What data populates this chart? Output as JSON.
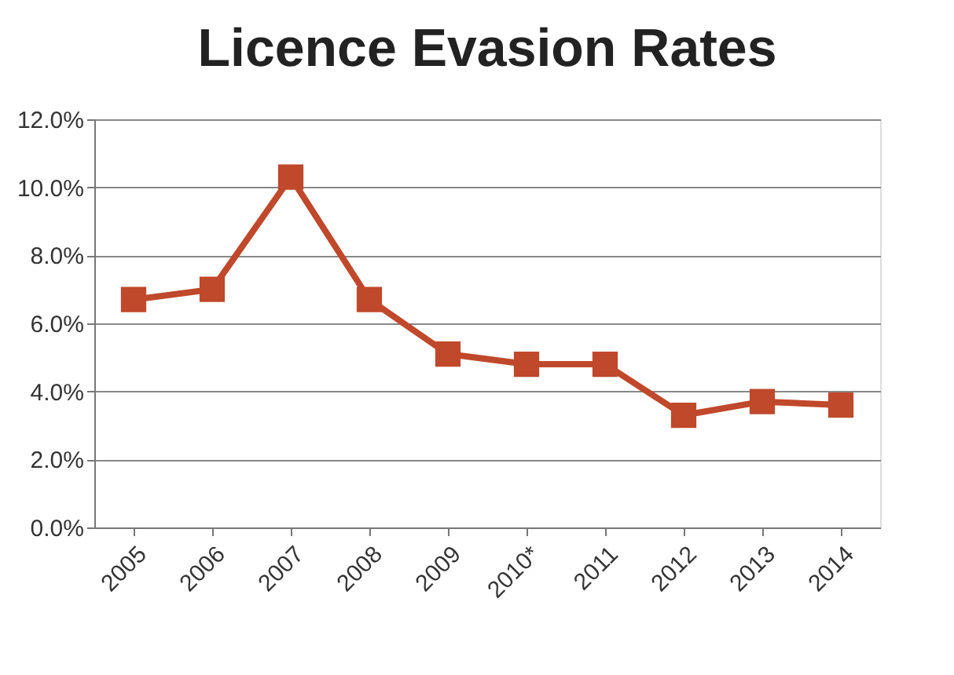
{
  "chart_data": {
    "type": "line",
    "title": "Licence Evasion Rates",
    "categories": [
      "2005",
      "2006",
      "2007",
      "2008",
      "2009",
      "2010*",
      "2011",
      "2012",
      "2013",
      "2014"
    ],
    "series": [
      {
        "color": "#c0482b",
        "values": [
          6.7,
          7.0,
          10.3,
          6.7,
          5.1,
          4.8,
          4.8,
          3.3,
          3.7,
          3.6
        ]
      }
    ],
    "ylim": [
      0,
      12
    ],
    "yticks": [
      {
        "value": 0,
        "label": "0.0%"
      },
      {
        "value": 2,
        "label": "2.0%"
      },
      {
        "value": 4,
        "label": "4.0%"
      },
      {
        "value": 6,
        "label": "6.0%"
      },
      {
        "value": 8,
        "label": "8.0%"
      },
      {
        "value": 10,
        "label": "10.0%"
      },
      {
        "value": 12,
        "label": "12.0%"
      }
    ],
    "grid": "y",
    "marker": "square",
    "line_style": "solid"
  }
}
